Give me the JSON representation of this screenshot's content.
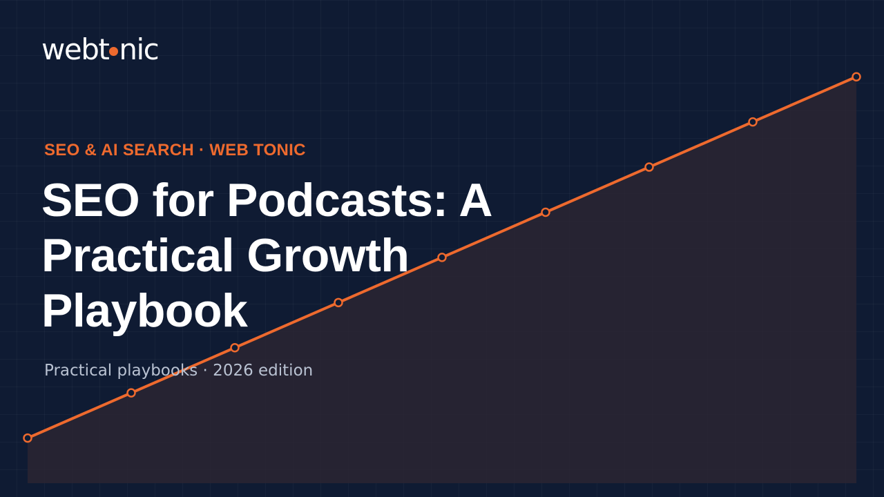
{
  "brand": {
    "logo_before_dot": "webt",
    "logo_after_dot": "nic",
    "logo_text": "webtonic",
    "accent_color": "#ee6a2e",
    "background_color": "#0f1b33"
  },
  "eyebrow": "SEO & AI SEARCH · WEB TONIC",
  "title": "SEO for Podcasts: A Practical Growth Playbook",
  "subtitle": "Practical playbooks · 2026 edition",
  "chart_data": {
    "type": "line",
    "x": [
      0,
      1,
      2,
      3,
      4,
      5,
      6,
      7,
      8
    ],
    "series": [
      {
        "values": [
          1.0,
          2.0,
          3.0,
          4.0,
          5.0,
          6.0,
          7.0,
          8.0,
          9.0
        ]
      }
    ],
    "ylim": [
      0,
      10.7
    ],
    "grid": true,
    "markers": "hollow-circle",
    "fill_under": true,
    "line_color": "#ee6a2e"
  }
}
